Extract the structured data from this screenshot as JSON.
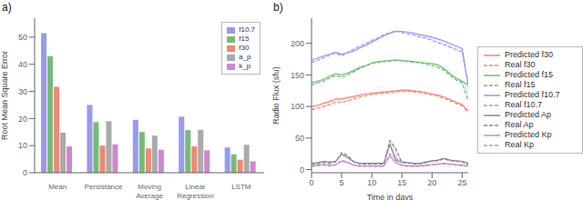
{
  "chart_data": [
    {
      "type": "bar",
      "annotation": "a)",
      "categories": [
        "Mean",
        "Persistance",
        "Moving\nAverage",
        "Linear\nRegression",
        "LSTM"
      ],
      "ylabel": "Root Mean Square Error",
      "ylim": [
        0,
        57
      ],
      "yticks": [
        0,
        10,
        20,
        30,
        40,
        50
      ],
      "grid": false,
      "legend": "upper right",
      "series": [
        {
          "name": "f10.7",
          "color": "#9999ee",
          "values": [
            51.5,
            25.0,
            19.5,
            20.7,
            9.3
          ]
        },
        {
          "name": "f15",
          "color": "#77bb77",
          "values": [
            43.0,
            18.7,
            15.0,
            15.7,
            6.8
          ]
        },
        {
          "name": "f30",
          "color": "#ee8877",
          "values": [
            31.7,
            10.0,
            9.0,
            9.7,
            4.8
          ]
        },
        {
          "name": "a_p",
          "color": "#aaaaaa",
          "values": [
            14.8,
            19.0,
            13.7,
            15.8,
            10.3
          ]
        },
        {
          "name": "k_p",
          "color": "#cc88cc",
          "values": [
            9.7,
            10.5,
            8.5,
            8.3,
            4.2
          ]
        }
      ]
    },
    {
      "type": "line",
      "annotation": "b)",
      "x": [
        0,
        1,
        2,
        3,
        4,
        5,
        6,
        7,
        8,
        9,
        10,
        11,
        12,
        13,
        14,
        15,
        16,
        17,
        18,
        19,
        20,
        21,
        22,
        23,
        24,
        25,
        26
      ],
      "xlabel": "Time in days",
      "ylabel": "Radio Flux (sfu)",
      "xlim": [
        0,
        26
      ],
      "xticks": [
        0,
        5,
        10,
        15,
        20,
        25
      ],
      "ylim": [
        -5,
        240
      ],
      "yticks": [
        0,
        50,
        100,
        150,
        200
      ],
      "grid": false,
      "legend": "right",
      "series": [
        {
          "name": "Predicted f30",
          "color": "#ee8877",
          "line_style": "solid",
          "values": [
            100,
            102,
            105,
            108,
            112,
            112,
            114,
            116,
            118,
            120,
            121,
            122,
            123,
            124,
            125,
            126,
            126,
            125,
            124,
            122,
            120,
            118,
            115,
            111,
            107,
            103,
            93
          ]
        },
        {
          "name": "Real f30",
          "color": "#ee8877",
          "line_style": "dashed",
          "values": [
            95,
            97,
            100,
            103,
            107,
            106,
            109,
            112,
            115,
            117,
            119,
            120,
            121,
            122,
            123,
            124,
            124,
            123,
            122,
            120,
            118,
            116,
            113,
            109,
            105,
            101,
            91
          ]
        },
        {
          "name": "Predicted f15",
          "color": "#77bb77",
          "line_style": "solid",
          "values": [
            138,
            140,
            143,
            148,
            152,
            150,
            153,
            157,
            162,
            165,
            169,
            171,
            172,
            173,
            174,
            173,
            172,
            171,
            170,
            169,
            168,
            166,
            160,
            152,
            145,
            140,
            134
          ]
        },
        {
          "name": "Real f15",
          "color": "#77bb77",
          "line_style": "dashed",
          "values": [
            134,
            137,
            140,
            145,
            149,
            146,
            150,
            155,
            160,
            164,
            168,
            170,
            171,
            172,
            173,
            172,
            171,
            170,
            169,
            167,
            165,
            162,
            157,
            149,
            142,
            137,
            109
          ]
        },
        {
          "name": "Predicted f10.7",
          "color": "#9999ee",
          "line_style": "solid",
          "values": [
            174,
            177,
            180,
            183,
            186,
            183,
            185,
            188,
            193,
            197,
            202,
            207,
            212,
            216,
            219,
            219,
            218,
            216,
            214,
            212,
            210,
            207,
            204,
            200,
            196,
            192,
            135
          ]
        },
        {
          "name": "Real f10.7",
          "color": "#9999ee",
          "line_style": "dashed",
          "values": [
            170,
            173,
            177,
            181,
            185,
            180,
            186,
            191,
            196,
            200,
            205,
            209,
            214,
            217,
            220,
            217,
            215,
            213,
            210,
            208,
            205,
            201,
            198,
            194,
            190,
            186,
            133
          ]
        },
        {
          "name": "Predicted Ap",
          "color": "#888888",
          "line_style": "solid",
          "values": [
            10,
            11,
            13,
            12,
            13,
            24,
            19,
            12,
            10,
            10,
            10,
            10,
            10,
            40,
            14,
            12,
            11,
            10,
            10,
            12,
            14,
            15,
            18,
            15,
            14,
            13,
            10
          ]
        },
        {
          "name": "Real Ap",
          "color": "#888888",
          "line_style": "dashed",
          "values": [
            8,
            9,
            11,
            10,
            12,
            27,
            22,
            13,
            9,
            9,
            9,
            9,
            9,
            46,
            33,
            11,
            10,
            9,
            9,
            11,
            13,
            14,
            17,
            14,
            13,
            12,
            8
          ]
        },
        {
          "name": "Predicted Kp",
          "color": "#cc88cc",
          "line_style": "solid",
          "values": [
            6,
            7,
            8,
            7,
            8,
            13,
            11,
            7,
            6,
            6,
            6,
            6,
            6,
            22,
            10,
            7,
            6,
            6,
            6,
            7,
            8,
            9,
            10,
            9,
            8,
            7,
            6
          ]
        },
        {
          "name": "Real Kp",
          "color": "#cc88cc",
          "line_style": "dashed",
          "values": [
            5,
            6,
            7,
            6,
            7,
            15,
            12,
            7,
            5,
            5,
            5,
            5,
            5,
            25,
            19,
            6,
            5,
            5,
            5,
            6,
            7,
            8,
            9,
            8,
            7,
            6,
            5
          ]
        }
      ]
    }
  ]
}
